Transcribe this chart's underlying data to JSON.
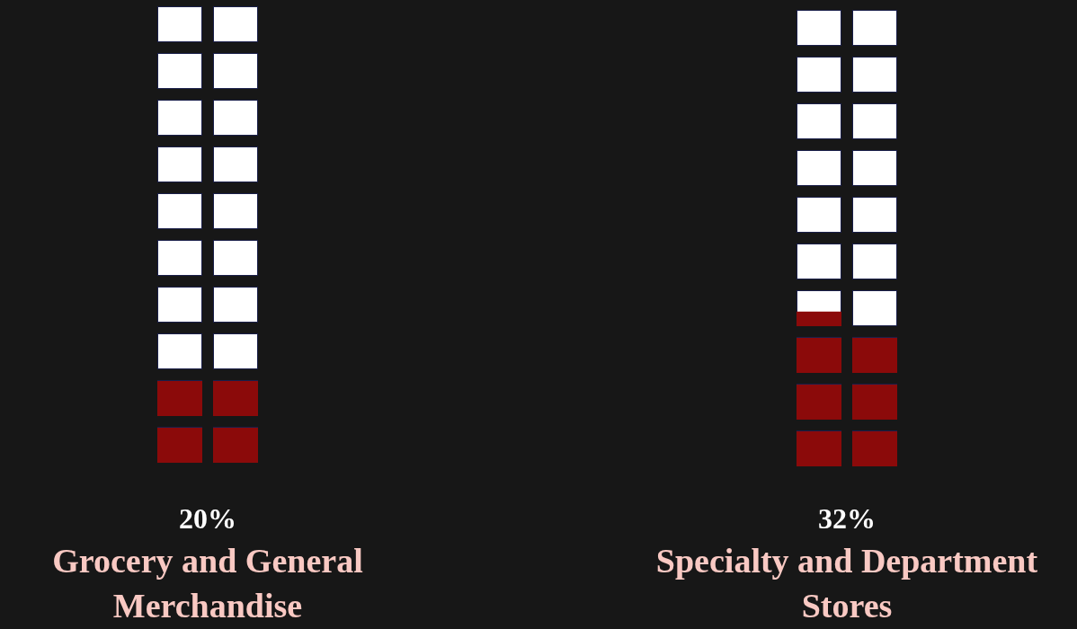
{
  "chart_data": {
    "type": "other",
    "categories": [
      "Grocery and General Merchandise",
      "Specialty and Department Stores"
    ],
    "values": [
      20,
      32
    ],
    "value_labels": [
      "20%",
      "32%"
    ],
    "colors": [
      "#8b0a0a",
      "#8b0a0a"
    ]
  }
}
